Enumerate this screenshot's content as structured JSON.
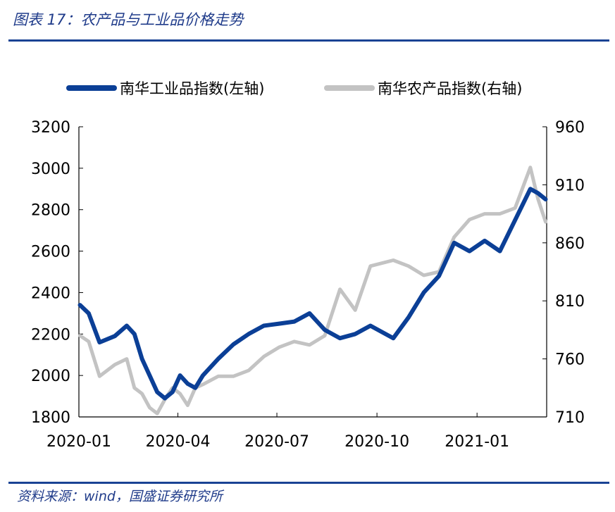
{
  "header": {
    "title": "图表 17：农产品与工业品价格走势"
  },
  "footer": {
    "source": "资料来源：wind，国盛证券研究所"
  },
  "chart_data": {
    "type": "line",
    "title": "",
    "xlabel": "",
    "ylabel": "",
    "grid": false,
    "legend_position": "top",
    "x_ticks": [
      "2020-01",
      "2020-04",
      "2020-07",
      "2020-10",
      "2021-01"
    ],
    "y_left_ticks": [
      "3200",
      "3000",
      "2800",
      "2600",
      "2400",
      "2200",
      "2000",
      "1800"
    ],
    "y_right_ticks": [
      "960",
      "910",
      "860",
      "810",
      "760",
      "710"
    ],
    "y_left_lim": [
      1800,
      3200
    ],
    "y_right_lim": [
      710,
      960
    ],
    "x": [
      "2020-01-02",
      "2020-01-10",
      "2020-01-20",
      "2020-02-03",
      "2020-02-14",
      "2020-02-21",
      "2020-02-28",
      "2020-03-06",
      "2020-03-13",
      "2020-03-20",
      "2020-03-27",
      "2020-04-03",
      "2020-04-10",
      "2020-04-17",
      "2020-04-24",
      "2020-05-08",
      "2020-05-22",
      "2020-06-05",
      "2020-06-19",
      "2020-07-03",
      "2020-07-17",
      "2020-07-31",
      "2020-08-14",
      "2020-08-28",
      "2020-09-11",
      "2020-09-25",
      "2020-10-16",
      "2020-10-30",
      "2020-11-13",
      "2020-11-27",
      "2020-12-11",
      "2020-12-25",
      "2021-01-08",
      "2021-01-22",
      "2021-02-05",
      "2021-02-19",
      "2021-02-26",
      "2021-03-05"
    ],
    "series": [
      {
        "name": "南华工业品指数(左轴)",
        "axis": "left",
        "color": "#0b3f96",
        "values": [
          2340,
          2300,
          2160,
          2190,
          2240,
          2200,
          2080,
          2000,
          1920,
          1890,
          1920,
          2000,
          1960,
          1940,
          2000,
          2080,
          2150,
          2200,
          2240,
          2250,
          2260,
          2300,
          2220,
          2180,
          2200,
          2240,
          2180,
          2280,
          2400,
          2480,
          2640,
          2600,
          2650,
          2600,
          2750,
          2900,
          2880,
          2850
        ]
      },
      {
        "name": "南华农产品指数(右轴)",
        "axis": "right",
        "color": "#c3c3c3",
        "values": [
          780,
          775,
          745,
          755,
          760,
          735,
          730,
          718,
          713,
          725,
          735,
          730,
          720,
          735,
          738,
          745,
          745,
          750,
          762,
          770,
          775,
          772,
          780,
          820,
          802,
          840,
          845,
          840,
          832,
          835,
          865,
          880,
          885,
          885,
          890,
          925,
          898,
          878
        ]
      }
    ]
  }
}
